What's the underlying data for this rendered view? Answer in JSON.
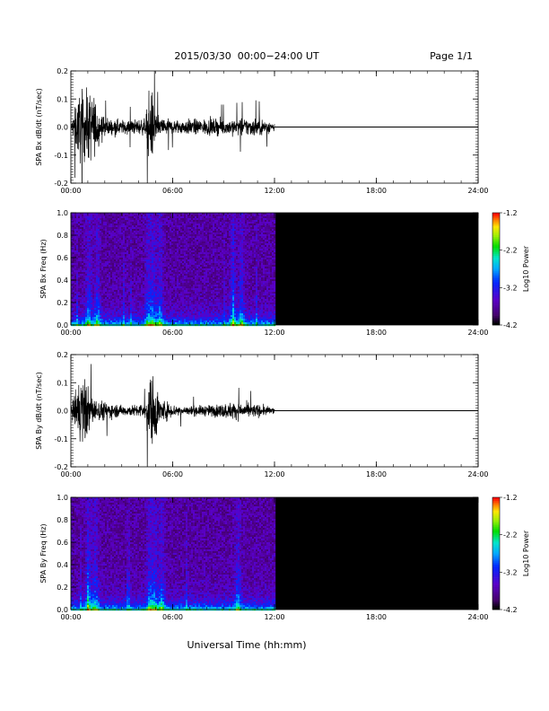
{
  "header": {
    "title": "2015/03/30  00:00−24:00 UT",
    "page": "Page 1/1"
  },
  "footer": {
    "xlabel": "Universal Time (hh:mm)"
  },
  "colorbar": {
    "label": "Log10 Power",
    "ticks": [
      "-1.2",
      "-2.2",
      "-3.2",
      "-4.2"
    ],
    "range": [
      -4.2,
      -1.2
    ]
  },
  "chart_data": [
    {
      "type": "line",
      "id": "bx-time",
      "ylabel": "SPA Bx dB/dt (nT/sec)",
      "xlim": [
        0,
        24
      ],
      "ylim": [
        -0.2,
        0.2
      ],
      "x_ticks": [
        "00:00",
        "06:00",
        "12:00",
        "18:00",
        "24:00"
      ],
      "y_ticks": [
        "0.2",
        "0.1",
        "0.0",
        "-0.1",
        "-0.2"
      ],
      "data_end_hour": 12.0,
      "envelope": {
        "hours": [
          0.0,
          0.2,
          0.5,
          1.0,
          1.3,
          1.7,
          2.0,
          2.5,
          3.0,
          3.5,
          4.0,
          4.4,
          4.6,
          4.8,
          5.0,
          5.2,
          5.4,
          6.0,
          7.0,
          8.0,
          9.0,
          10.0,
          11.0,
          12.0
        ],
        "amplitude": [
          0.02,
          0.1,
          0.22,
          0.22,
          0.22,
          0.1,
          0.06,
          0.05,
          0.045,
          0.045,
          0.05,
          0.05,
          0.22,
          0.22,
          0.09,
          0.07,
          0.06,
          0.045,
          0.05,
          0.05,
          0.05,
          0.055,
          0.06,
          0.03
        ]
      }
    },
    {
      "type": "heatmap",
      "id": "bx-spectrogram",
      "ylabel": "SPA Bx Freq (Hz)",
      "xlim": [
        0,
        24
      ],
      "ylim": [
        0.0,
        1.0
      ],
      "x_ticks": [
        "00:00",
        "06:00",
        "12:00",
        "18:00",
        "24:00"
      ],
      "y_ticks": [
        "1.0",
        "0.8",
        "0.6",
        "0.4",
        "0.2",
        "0.0"
      ],
      "data_end_hour": 12.0,
      "activity_hours": [
        1.0,
        1.5,
        4.5,
        4.8,
        5.2,
        9.5,
        10.0
      ],
      "power_range": [
        -4.2,
        -1.2
      ]
    },
    {
      "type": "line",
      "id": "by-time",
      "ylabel": "SPA By dB/dt (nT/sec)",
      "xlim": [
        0,
        24
      ],
      "ylim": [
        -0.2,
        0.2
      ],
      "x_ticks": [
        "00:00",
        "06:00",
        "12:00",
        "18:00",
        "24:00"
      ],
      "y_ticks": [
        "0.2",
        "0.1",
        "0.0",
        "-0.1",
        "-0.2"
      ],
      "data_end_hour": 12.0,
      "envelope": {
        "hours": [
          0.0,
          0.2,
          0.5,
          0.8,
          1.0,
          1.2,
          1.5,
          2.0,
          2.5,
          3.0,
          3.5,
          4.0,
          4.4,
          4.6,
          4.8,
          5.0,
          5.2,
          5.6,
          6.0,
          7.0,
          8.0,
          9.0,
          9.5,
          10.0,
          11.0,
          12.0
        ],
        "amplitude": [
          0.02,
          0.1,
          0.22,
          0.22,
          0.15,
          0.1,
          0.07,
          0.06,
          0.045,
          0.035,
          0.035,
          0.04,
          0.05,
          0.22,
          0.22,
          0.2,
          0.09,
          0.06,
          0.04,
          0.03,
          0.035,
          0.045,
          0.055,
          0.05,
          0.04,
          0.02
        ]
      }
    },
    {
      "type": "heatmap",
      "id": "by-spectrogram",
      "ylabel": "SPA By Freq (Hz)",
      "xlim": [
        0,
        24
      ],
      "ylim": [
        0.0,
        1.0
      ],
      "x_ticks": [
        "00:00",
        "06:00",
        "12:00",
        "18:00",
        "24:00"
      ],
      "y_ticks": [
        "1.0",
        "0.8",
        "0.6",
        "0.4",
        "0.2",
        "0.0"
      ],
      "data_end_hour": 12.0,
      "activity_hours": [
        1.0,
        1.4,
        4.6,
        4.9,
        5.3,
        9.8
      ],
      "power_range": [
        -4.2,
        -1.2
      ]
    }
  ]
}
